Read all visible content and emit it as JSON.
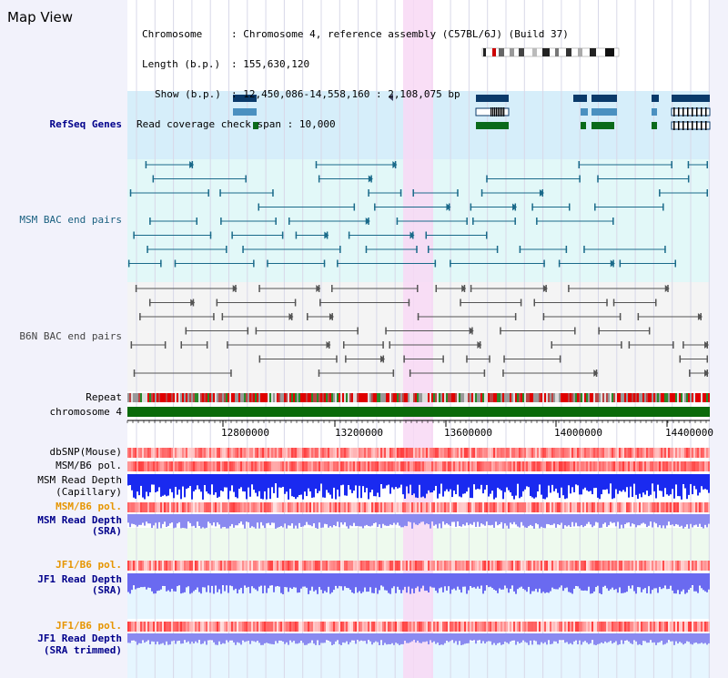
{
  "app": {
    "title": "Map View"
  },
  "info": {
    "chromosome_key": "Chromosome",
    "chromosome_val": "Chromosome 4, reference assembly (C57BL/6J) (Build 37)",
    "length_key": "Length (b.p.)",
    "length_val": "155,630,120",
    "show_key": "Show (b.p.)",
    "show_val": "12,450,086-14,558,160 : 2,108,075 bp",
    "coverage_key": "Read coverage check span",
    "coverage_val": "10,000"
  },
  "tracks": {
    "refseq": "RefSeq Genes",
    "msm_bac": "MSM BAC end pairs",
    "b6n_bac": "B6N BAC end pairs",
    "repeat": "Repeat",
    "chromosome": "chromosome 4",
    "dbsnp": "dbSNP(Mouse)",
    "msm_b6_pol": "MSM/B6 pol.",
    "msm_depth_1": "MSM Read Depth",
    "msm_depth_2": "(Capillary)",
    "msm_b6_pol_sra": "MSM/B6 pol.",
    "msm_sra_1": "MSM Read Depth",
    "msm_sra_2": "(SRA)",
    "jf1_b6_pol": "JF1/B6 pol.",
    "jf1_sra_1": "JF1 Read Depth",
    "jf1_sra_2": "(SRA)",
    "jf1_b6_pol_trim": "JF1/B6 pol.",
    "jf1_trim_1": "JF1 Read Depth",
    "jf1_trim_2": "(SRA trimmed)"
  },
  "axis": {
    "ticks": [
      "12800000",
      "13200000",
      "13600000",
      "14000000",
      "14400000"
    ]
  },
  "colors": {
    "highlight": "#f8d8f4",
    "refseq_bg": "#d6eefa",
    "bac_bg": "#e2f8f8",
    "gene_navy": "#0a3a6a",
    "gene_steel": "#4a90c0",
    "gene_green": "#0a6a1a",
    "msm_bac": "#1a6a8a",
    "b6n_bac": "#555555",
    "chromosome_bar": "#0a6a0a",
    "depth_blue": "#1a2af0",
    "sra_blue": "#8a8af0"
  }
}
